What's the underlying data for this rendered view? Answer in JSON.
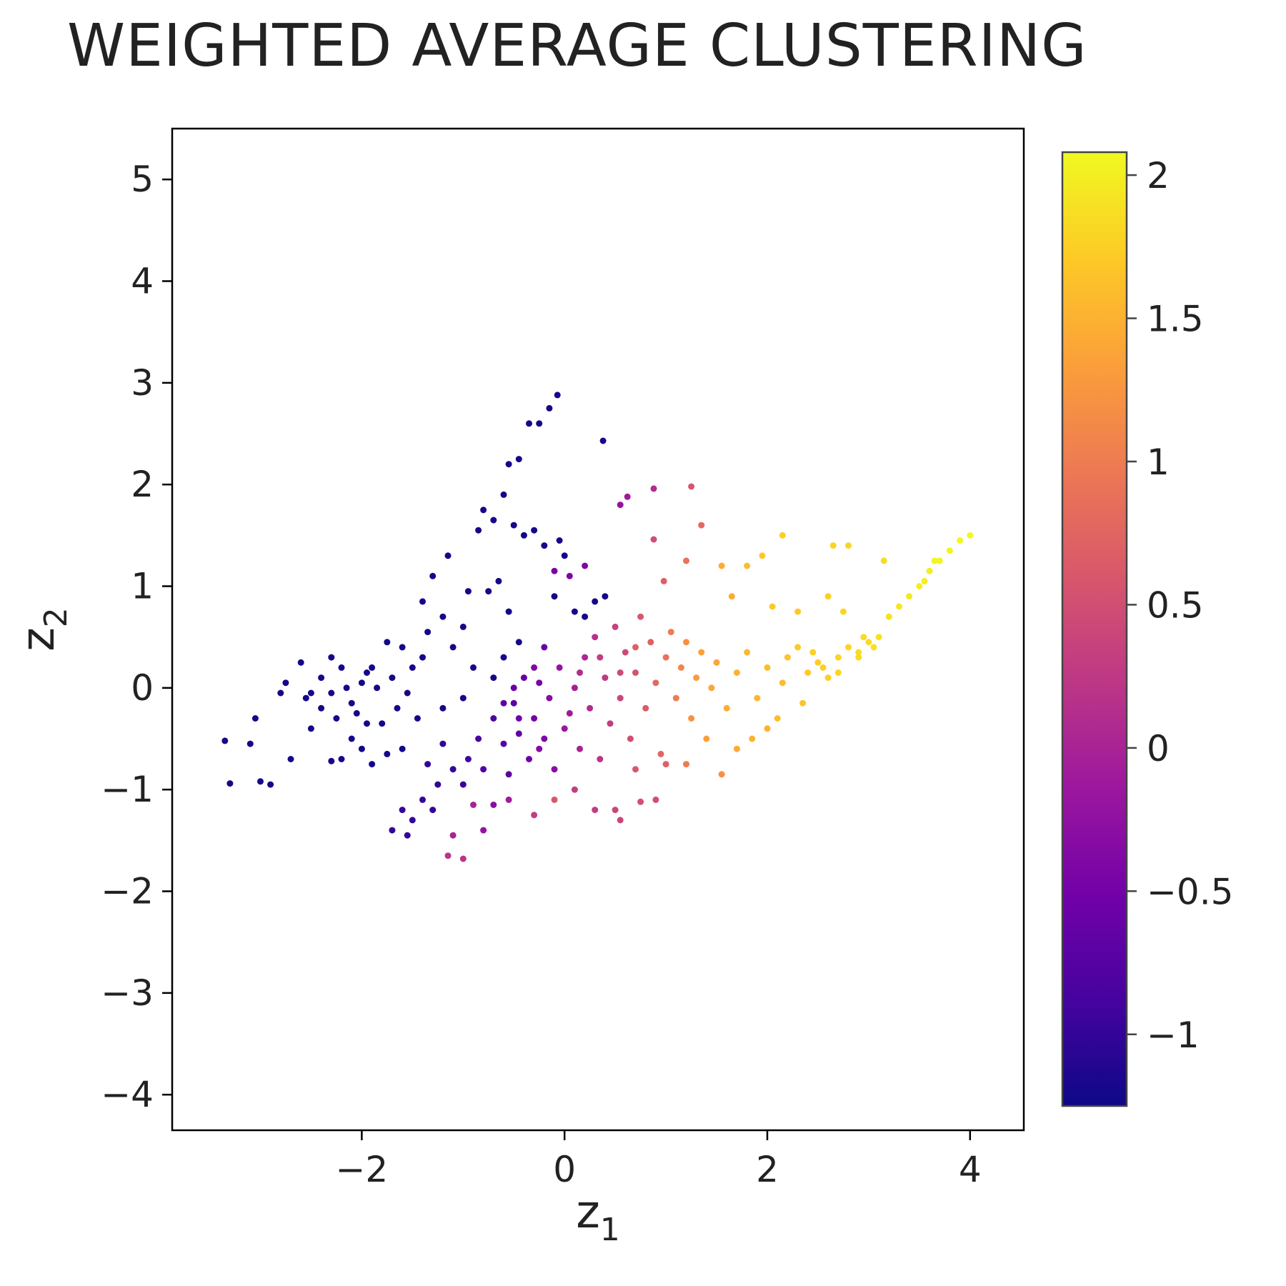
{
  "chart_data": {
    "type": "scatter",
    "title": "WEIGHTED AVERAGE CLUSTERING",
    "xlabel": "z",
    "xlabel_subscript": "1",
    "ylabel": "z",
    "ylabel_subscript": "2",
    "xlim": [
      -3.87,
      4.53
    ],
    "ylim": [
      -4.35,
      5.5
    ],
    "xticks": [
      {
        "value": -2,
        "label": "−2"
      },
      {
        "value": 0,
        "label": "0"
      },
      {
        "value": 2,
        "label": "2"
      },
      {
        "value": 4,
        "label": "4"
      }
    ],
    "yticks": [
      {
        "value": 5,
        "label": "5"
      },
      {
        "value": 4,
        "label": "4"
      },
      {
        "value": 3,
        "label": "3"
      },
      {
        "value": 2,
        "label": "2"
      },
      {
        "value": 1,
        "label": "1"
      },
      {
        "value": 0,
        "label": "0"
      },
      {
        "value": -1,
        "label": "−1"
      },
      {
        "value": -2,
        "label": "−2"
      },
      {
        "value": -3,
        "label": "−3"
      },
      {
        "value": -4,
        "label": "−4"
      }
    ],
    "grid": false,
    "colorbar": {
      "colormap": "plasma",
      "range": [
        -1.25,
        2.08
      ],
      "stops": [
        "#0d0887",
        "#46039f",
        "#7201a8",
        "#9c179e",
        "#bd3786",
        "#d8576b",
        "#ed7953",
        "#fb9f3a",
        "#fdca26",
        "#f0f921"
      ],
      "ticks": [
        {
          "value": 2,
          "label": "2"
        },
        {
          "value": 1.5,
          "label": "1.5"
        },
        {
          "value": 1,
          "label": "1"
        },
        {
          "value": 0.5,
          "label": "0.5"
        },
        {
          "value": 0,
          "label": "0"
        },
        {
          "value": -0.5,
          "label": "−0.5"
        },
        {
          "value": -1,
          "label": "−1"
        }
      ]
    },
    "points": [
      [
        -3.3,
        -0.94,
        -1.2
      ],
      [
        -3.35,
        -0.52,
        -1.2
      ],
      [
        -3.1,
        -0.55,
        -1.2
      ],
      [
        -3.0,
        -0.92,
        -1.2
      ],
      [
        -2.9,
        -0.95,
        -1.2
      ],
      [
        -3.05,
        -0.3,
        -1.2
      ],
      [
        -2.8,
        -0.05,
        -1.2
      ],
      [
        -2.75,
        0.05,
        -1.2
      ],
      [
        -2.6,
        0.25,
        -1.2
      ],
      [
        -2.55,
        -0.1,
        -1.2
      ],
      [
        -2.5,
        -0.4,
        -1.2
      ],
      [
        -2.7,
        -0.7,
        -1.2
      ],
      [
        -2.3,
        -0.72,
        -1.2
      ],
      [
        -2.2,
        -0.7,
        -1.2
      ],
      [
        -2.4,
        0.1,
        -1.2
      ],
      [
        -2.3,
        0.3,
        -1.2
      ],
      [
        -2.2,
        0.2,
        -1.2
      ],
      [
        -2.1,
        -0.15,
        -1.2
      ],
      [
        -2.0,
        0.05,
        -1.2
      ],
      [
        -1.9,
        0.2,
        -1.2
      ],
      [
        -1.95,
        -0.35,
        -1.2
      ],
      [
        -1.8,
        -0.35,
        -1.2
      ],
      [
        -1.75,
        0.45,
        -1.2
      ],
      [
        -1.6,
        0.4,
        -1.2
      ],
      [
        -1.5,
        0.2,
        -1.2
      ],
      [
        -1.55,
        -0.05,
        -1.2
      ],
      [
        -1.4,
        0.3,
        -1.2
      ],
      [
        -1.35,
        0.55,
        -1.2
      ],
      [
        -1.4,
        0.85,
        -1.2
      ],
      [
        -1.3,
        1.1,
        -1.2
      ],
      [
        -1.2,
        0.7,
        -1.2
      ],
      [
        -1.15,
        1.3,
        -1.2
      ],
      [
        -1.1,
        0.4,
        -1.2
      ],
      [
        -1.0,
        0.6,
        -1.2
      ],
      [
        -0.95,
        0.95,
        -1.2
      ],
      [
        -0.85,
        1.55,
        -1.2
      ],
      [
        -0.8,
        1.75,
        -1.2
      ],
      [
        -0.7,
        1.65,
        -1.2
      ],
      [
        -0.6,
        1.9,
        -1.2
      ],
      [
        -0.55,
        2.2,
        -1.2
      ],
      [
        -0.45,
        2.25,
        -1.2
      ],
      [
        -0.35,
        2.6,
        -1.2
      ],
      [
        -0.25,
        2.6,
        -1.2
      ],
      [
        -0.15,
        2.75,
        -1.2
      ],
      [
        -0.07,
        2.88,
        -1.2
      ],
      [
        0.38,
        2.43,
        -1.2
      ],
      [
        -0.5,
        1.6,
        -1.2
      ],
      [
        -0.4,
        1.5,
        -1.2
      ],
      [
        -0.3,
        1.55,
        -1.2
      ],
      [
        -0.65,
        1.05,
        -1.2
      ],
      [
        -0.75,
        0.95,
        -1.2
      ],
      [
        -0.55,
        0.75,
        -1.2
      ],
      [
        -0.45,
        0.45,
        -1.2
      ],
      [
        -0.2,
        1.4,
        -1.2
      ],
      [
        -0.05,
        1.45,
        -1.2
      ],
      [
        0.0,
        1.3,
        -1.2
      ],
      [
        -0.1,
        0.9,
        -1.2
      ],
      [
        0.1,
        0.75,
        -1.2
      ],
      [
        0.2,
        0.7,
        -1.2
      ],
      [
        0.3,
        0.85,
        -1.2
      ],
      [
        0.4,
        0.9,
        -1.2
      ],
      [
        -0.6,
        0.3,
        -1.2
      ],
      [
        -0.7,
        0.1,
        -1.2
      ],
      [
        -0.9,
        0.2,
        -1.2
      ],
      [
        -1.0,
        -0.1,
        -1.2
      ],
      [
        -1.2,
        -0.2,
        -1.2
      ],
      [
        -1.45,
        -0.3,
        -1.2
      ],
      [
        -1.6,
        -0.6,
        -1.2
      ],
      [
        -1.9,
        -0.75,
        -1.2
      ],
      [
        -2.1,
        -0.5,
        -1.2
      ],
      [
        -2.0,
        -0.6,
        -1.2
      ],
      [
        -1.75,
        -0.65,
        -1.2
      ],
      [
        -1.6,
        -1.2,
        -1.0
      ],
      [
        -1.7,
        -1.4,
        -1.0
      ],
      [
        -1.55,
        -1.45,
        -1.0
      ],
      [
        -1.5,
        -1.3,
        -1.0
      ],
      [
        -1.4,
        -1.1,
        -1.0
      ],
      [
        -1.3,
        -1.2,
        -1.0
      ],
      [
        -1.25,
        -0.95,
        -1.0
      ],
      [
        -1.35,
        -0.75,
        -1.0
      ],
      [
        -1.2,
        -0.55,
        -1.0
      ],
      [
        -1.1,
        -0.8,
        -1.0
      ],
      [
        -1.0,
        -0.95,
        -0.95
      ],
      [
        -0.95,
        -0.7,
        -0.9
      ],
      [
        -0.85,
        -0.5,
        -0.85
      ],
      [
        -0.8,
        -0.8,
        -0.8
      ],
      [
        -0.7,
        -0.3,
        -0.8
      ],
      [
        -0.6,
        -0.55,
        -0.75
      ],
      [
        -0.55,
        -0.85,
        -0.7
      ],
      [
        -0.5,
        -0.15,
        -0.7
      ],
      [
        -0.45,
        -0.45,
        -0.65
      ],
      [
        -0.4,
        0.1,
        -0.6
      ],
      [
        -0.35,
        -0.7,
        -0.55
      ],
      [
        -0.3,
        -0.3,
        -0.5
      ],
      [
        -0.25,
        0.05,
        -0.45
      ],
      [
        -0.2,
        -0.5,
        -0.4
      ],
      [
        -0.2,
        0.4,
        -0.6
      ],
      [
        -0.15,
        -0.1,
        -0.3
      ],
      [
        -0.1,
        -0.8,
        -0.3
      ],
      [
        -0.1,
        1.15,
        -0.45
      ],
      [
        -0.05,
        0.2,
        -0.2
      ],
      [
        0.0,
        -0.4,
        -0.15
      ],
      [
        0.05,
        1.1,
        -0.4
      ],
      [
        0.1,
        0.0,
        -0.05
      ],
      [
        0.15,
        -0.6,
        0.0
      ],
      [
        0.2,
        0.3,
        0.05
      ],
      [
        0.2,
        1.2,
        -0.4
      ],
      [
        0.25,
        -0.2,
        0.1
      ],
      [
        0.3,
        0.5,
        0.15
      ],
      [
        0.35,
        -0.7,
        0.2
      ],
      [
        0.4,
        0.1,
        0.25
      ],
      [
        0.45,
        -0.35,
        0.3
      ],
      [
        0.5,
        0.6,
        0.35
      ],
      [
        0.55,
        -0.1,
        0.4
      ],
      [
        0.6,
        0.35,
        0.45
      ],
      [
        0.65,
        -0.5,
        0.5
      ],
      [
        0.7,
        0.15,
        0.55
      ],
      [
        0.75,
        0.7,
        0.6
      ],
      [
        0.8,
        -0.2,
        0.65
      ],
      [
        0.85,
        0.45,
        0.7
      ],
      [
        0.9,
        0.05,
        0.8
      ],
      [
        0.95,
        -0.65,
        0.75
      ],
      [
        1.0,
        0.3,
        0.9
      ],
      [
        1.05,
        0.55,
        1.0
      ],
      [
        1.1,
        -0.1,
        1.0
      ],
      [
        1.15,
        0.2,
        1.1
      ],
      [
        1.2,
        0.45,
        1.2
      ],
      [
        1.25,
        -0.3,
        1.2
      ],
      [
        1.3,
        0.1,
        1.3
      ],
      [
        1.35,
        0.35,
        1.35
      ],
      [
        1.4,
        -0.5,
        1.35
      ],
      [
        1.45,
        0.0,
        1.4
      ],
      [
        1.5,
        0.25,
        1.4
      ],
      [
        1.6,
        -0.2,
        1.45
      ],
      [
        1.7,
        0.15,
        1.5
      ],
      [
        1.8,
        0.35,
        1.55
      ],
      [
        1.9,
        -0.1,
        1.55
      ],
      [
        2.0,
        0.2,
        1.6
      ],
      [
        2.1,
        -0.3,
        1.6
      ],
      [
        2.2,
        0.3,
        1.65
      ],
      [
        2.3,
        0.4,
        1.7
      ],
      [
        2.4,
        0.15,
        1.7
      ],
      [
        2.5,
        0.25,
        1.75
      ],
      [
        2.6,
        0.1,
        1.75
      ],
      [
        2.7,
        0.3,
        1.8
      ],
      [
        2.8,
        0.4,
        1.8
      ],
      [
        2.9,
        0.35,
        1.85
      ],
      [
        3.0,
        0.45,
        1.85
      ],
      [
        3.1,
        0.5,
        1.9
      ],
      [
        3.2,
        0.7,
        1.9
      ],
      [
        3.3,
        0.8,
        1.95
      ],
      [
        3.4,
        0.9,
        1.95
      ],
      [
        3.5,
        1.0,
        2.0
      ],
      [
        3.6,
        1.15,
        2.0
      ],
      [
        3.7,
        1.25,
        2.05
      ],
      [
        3.8,
        1.35,
        2.05
      ],
      [
        3.9,
        1.45,
        2.08
      ],
      [
        4.0,
        1.5,
        2.08
      ],
      [
        3.65,
        1.25,
        2.05
      ],
      [
        3.55,
        1.05,
        2.0
      ],
      [
        2.15,
        1.5,
        1.75
      ],
      [
        2.65,
        1.4,
        1.8
      ],
      [
        2.8,
        1.4,
        1.8
      ],
      [
        3.15,
        1.25,
        1.85
      ],
      [
        1.95,
        1.3,
        1.7
      ],
      [
        1.8,
        1.2,
        1.6
      ],
      [
        2.05,
        0.8,
        1.7
      ],
      [
        2.3,
        0.75,
        1.7
      ],
      [
        2.6,
        0.9,
        1.75
      ],
      [
        2.75,
        0.75,
        1.8
      ],
      [
        1.55,
        1.2,
        1.45
      ],
      [
        1.65,
        0.9,
        1.45
      ],
      [
        1.25,
        1.98,
        0.6
      ],
      [
        1.35,
        1.6,
        0.8
      ],
      [
        0.88,
        1.96,
        0.1
      ],
      [
        0.62,
        1.88,
        -0.1
      ],
      [
        0.55,
        1.8,
        -0.2
      ],
      [
        0.88,
        1.46,
        0.5
      ],
      [
        1.2,
        1.25,
        0.9
      ],
      [
        0.98,
        1.05,
        0.7
      ],
      [
        1.55,
        -0.85,
        1.2
      ],
      [
        1.2,
        -0.75,
        1.0
      ],
      [
        1.0,
        -0.75,
        0.7
      ],
      [
        0.7,
        -0.8,
        0.6
      ],
      [
        0.9,
        -1.1,
        0.5
      ],
      [
        0.75,
        -1.12,
        0.5
      ],
      [
        0.55,
        -1.3,
        0.4
      ],
      [
        0.5,
        -1.2,
        0.4
      ],
      [
        0.3,
        -1.2,
        0.3
      ],
      [
        0.1,
        -1.0,
        0.3
      ],
      [
        -0.1,
        -1.1,
        0.6
      ],
      [
        -0.3,
        -1.25,
        0.3
      ],
      [
        -0.55,
        -1.1,
        -0.1
      ],
      [
        -0.7,
        -1.15,
        -0.3
      ],
      [
        -0.9,
        -1.15,
        0.0
      ],
      [
        -1.0,
        -1.68,
        0.2
      ],
      [
        -1.15,
        -1.65,
        0.2
      ],
      [
        -1.1,
        -1.45,
        0.0
      ],
      [
        -0.8,
        -1.4,
        -0.2
      ],
      [
        2.0,
        -0.4,
        1.5
      ],
      [
        2.15,
        0.05,
        1.6
      ],
      [
        2.35,
        -0.15,
        1.65
      ],
      [
        1.85,
        -0.5,
        1.5
      ],
      [
        1.7,
        -0.6,
        1.45
      ],
      [
        2.9,
        0.3,
        1.85
      ],
      [
        2.95,
        0.5,
        1.85
      ],
      [
        3.05,
        0.4,
        1.9
      ],
      [
        2.45,
        0.35,
        1.75
      ],
      [
        2.55,
        0.2,
        1.75
      ],
      [
        2.7,
        0.15,
        1.8
      ],
      [
        -2.4,
        -0.2,
        -1.2
      ],
      [
        -2.3,
        -0.05,
        -1.2
      ],
      [
        -2.15,
        0.0,
        -1.2
      ],
      [
        -2.05,
        -0.25,
        -1.2
      ],
      [
        -1.95,
        0.15,
        -1.2
      ],
      [
        -1.85,
        0.0,
        -1.2
      ],
      [
        -1.7,
        0.1,
        -1.2
      ],
      [
        -1.65,
        -0.2,
        -1.2
      ],
      [
        -2.25,
        -0.3,
        -1.2
      ],
      [
        -2.5,
        -0.05,
        -1.2
      ],
      [
        -0.3,
        0.2,
        -0.4
      ],
      [
        -0.5,
        0.0,
        -0.6
      ],
      [
        -0.45,
        -0.3,
        -0.5
      ],
      [
        -0.6,
        -0.15,
        -0.65
      ],
      [
        -0.25,
        -0.6,
        -0.35
      ],
      [
        0.05,
        -0.25,
        -0.1
      ],
      [
        0.15,
        0.15,
        0.1
      ],
      [
        0.35,
        0.3,
        0.3
      ],
      [
        0.55,
        0.15,
        0.45
      ],
      [
        0.7,
        0.4,
        0.7
      ]
    ]
  }
}
